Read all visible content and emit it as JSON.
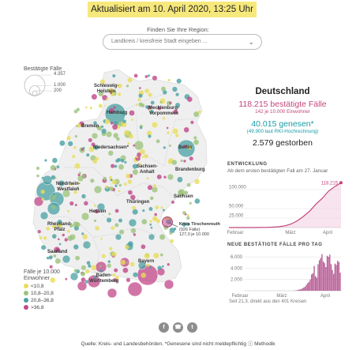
{
  "banner": "Aktualisiert am 10. April 2020, 13:25 Uhr",
  "finder": {
    "label": "Finden Sie Ihre Region:",
    "placeholder": "Landkreis / kreisfreie Stadt eingeben ...",
    "chevron_icon": "chevron-down-icon"
  },
  "size_legend": {
    "title": "Bestätigte Fälle",
    "values": [
      "4.357",
      "1.000",
      "200"
    ]
  },
  "rate_legend": {
    "title_line1": "Fälle je 10.000",
    "title_line2": "Einwohner",
    "items": [
      {
        "label": "<10,8",
        "color": "#e8dc5a"
      },
      {
        "label": "10,8–20,8",
        "color": "#9bc27a"
      },
      {
        "label": "20,8–36,8",
        "color": "#4aa0a3"
      },
      {
        "label": ">36,8",
        "color": "#c1478a"
      }
    ]
  },
  "states": [
    "Schleswig-Holstein",
    "Hamburg",
    "Mecklenburg-Vorpommern",
    "Bremen",
    "Niedersachsen*",
    "Berlin",
    "Sachsen-Anhalt",
    "Brandenburg",
    "Nordrhein-Westfalen",
    "Sachsen",
    "Thüringen",
    "Hessen",
    "Rheinland-Pfalz",
    "Saarland",
    "Bayern",
    "Baden-Württemberg"
  ],
  "tooltip": {
    "name": "Kreis Tirschenreuth",
    "cases": "(926 Fälle)",
    "rate": "127,0 je 10.000"
  },
  "summary": {
    "country": "Deutschland",
    "cases": "118.215 bestätigte Fälle",
    "rate": "142 je 10.000 Einwohner",
    "recovered": "40.015 genesen*",
    "rki": "(49.900 laut RKI-Hochrechnung)",
    "deaths": "2.579 gestorben"
  },
  "development": {
    "title": "ENTWICKLUNG",
    "subtitle": "Ab dem ersten bestätigten Fall am 27. Januar"
  },
  "daily": {
    "title": "NEUE BESTÄTIGTE FÄLLE PRO TAG",
    "footnote": "Seit 21.3. direkt aus den 401 Kreisen"
  },
  "share_icons": [
    "facebook-icon",
    "whatsapp-icon",
    "twitter-icon"
  ],
  "source": "Quelle: Kreis- und Landesbehörden. *Genesene sind nicht meldepflichtig ⓘ Methodik",
  "chart_data": [
    {
      "type": "line",
      "title": "ENTWICKLUNG",
      "subtitle": "Ab dem ersten bestätigten Fall am 27. Januar",
      "x_ticks": [
        "Februar",
        "März",
        "April"
      ],
      "y_ticks": [
        "100.000",
        "50.000",
        "25.000"
      ],
      "ylim": [
        0,
        125000
      ],
      "end_label": "118.215",
      "color": "#c4467b",
      "series": [
        {
          "x": [
            "27.1.",
            "2.2.",
            "9.2.",
            "16.2.",
            "23.2.",
            "1.3.",
            "5.3.",
            "8.3.",
            "11.3.",
            "14.3.",
            "17.3.",
            "20.3.",
            "23.3.",
            "26.3.",
            "29.3.",
            "1.4.",
            "4.4.",
            "7.4.",
            "10.4."
          ],
          "values": [
            1,
            12,
            14,
            16,
            16,
            130,
            480,
            1040,
            2000,
            4600,
            9300,
            18000,
            30000,
            44000,
            62000,
            77000,
            96000,
            108000,
            118215
          ]
        }
      ]
    },
    {
      "type": "bar",
      "title": "NEUE BESTÄTIGTE FÄLLE PRO TAG",
      "x_ticks": [
        "Februar",
        "März",
        "April"
      ],
      "y_ticks": [
        "6.000",
        "4.000",
        "2.000"
      ],
      "ylim": [
        0,
        7000
      ],
      "color": "#b45590",
      "values": [
        0,
        0,
        0,
        0,
        0,
        0,
        0,
        0,
        0,
        0,
        0,
        0,
        0,
        0,
        0,
        0,
        0,
        0,
        0,
        0,
        0,
        0,
        0,
        0,
        0,
        0,
        0,
        0,
        0,
        0,
        0,
        0,
        0,
        0,
        0,
        0,
        5,
        20,
        40,
        60,
        120,
        170,
        250,
        300,
        430,
        580,
        730,
        1050,
        1350,
        1600,
        2000,
        2900,
        3100,
        4400,
        2600,
        2300,
        4700,
        5400,
        5800,
        6500,
        5200,
        4900,
        4200,
        6200,
        6000,
        6400,
        4700,
        3700,
        3000,
        4800,
        4600,
        5300,
        5100,
        3200
      ],
      "footnote": "Seit 21.3. direkt aus den 401 Kreisen"
    }
  ]
}
